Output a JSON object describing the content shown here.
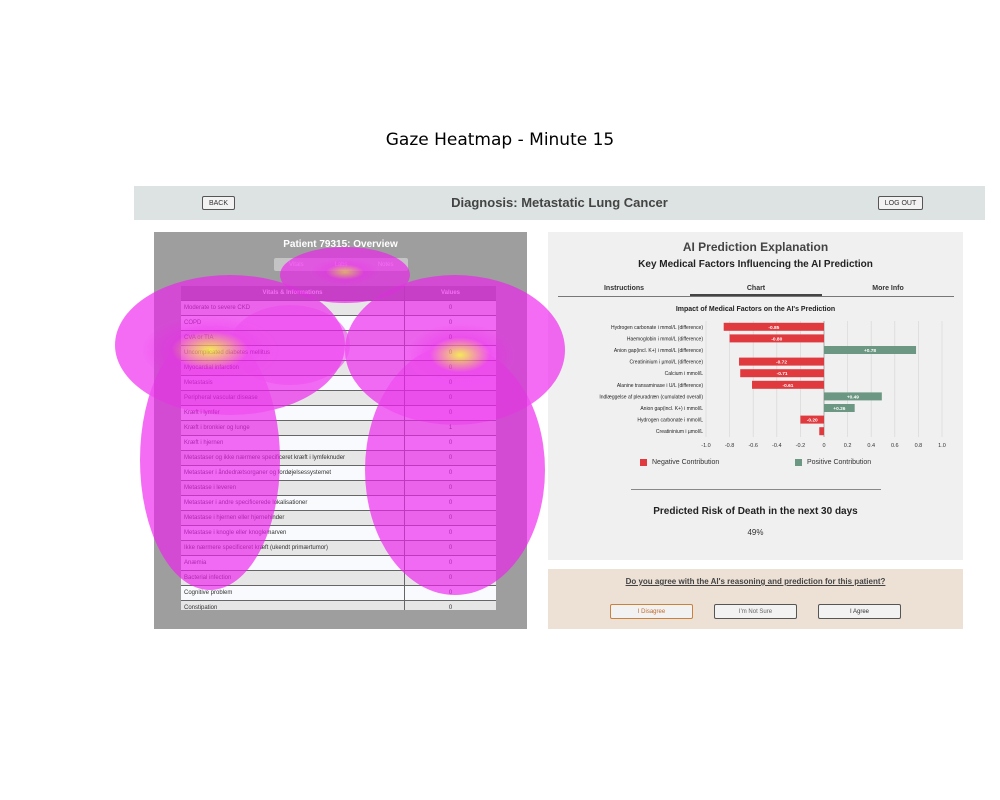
{
  "figure_title": "Gaze Heatmap - Minute 15",
  "topbar": {
    "back_label": "BACK",
    "heading": "Diagnosis: Metastatic Lung Cancer",
    "logout_label": "LOG OUT"
  },
  "patient": {
    "title": "Patient 79315: Overview",
    "tabs": [
      "Vitals",
      "Labs",
      "Notes"
    ],
    "table_headers": [
      "Vitals & Informations",
      "Values"
    ],
    "rows": [
      [
        "Moderate to severe CKD",
        "0"
      ],
      [
        "COPD",
        "0"
      ],
      [
        "CVA or TIA",
        "0"
      ],
      [
        "Uncomplicated diabetes mellitus",
        "0"
      ],
      [
        "Myocardial infarction",
        "0"
      ],
      [
        "Metastasis",
        "0"
      ],
      [
        "Peripheral vascular disease",
        "0"
      ],
      [
        "Kræft i lymfer",
        "0"
      ],
      [
        "Kræft i bronkier og lunge",
        "1"
      ],
      [
        "Kræft i hjernen",
        "0"
      ],
      [
        "Metastaser og ikke nærmere specificeret kræft i lymfeknuder",
        "0"
      ],
      [
        "Metastaser i åndedrætsorganer og fordøjelsessystemet",
        "0"
      ],
      [
        "Metastase i leveren",
        "0"
      ],
      [
        "Metastaser i andre specificerede lokalisationer",
        "0"
      ],
      [
        "Metastase i hjernen eller hjernehinder",
        "0"
      ],
      [
        "Metastase i knogle eller knoglemarven",
        "0"
      ],
      [
        "Ikke nærmere specificeret kræft (ukendt primærtumor)",
        "0"
      ],
      [
        "Anæmia",
        "0"
      ],
      [
        "Bacterial infection",
        "0"
      ],
      [
        "Cognitive problem",
        "0"
      ],
      [
        "Constipation",
        "0"
      ]
    ]
  },
  "explanation": {
    "title": "AI Prediction Explanation",
    "subtitle": "Key Medical Factors Influencing the AI Prediction",
    "tabs": [
      "Instructions",
      "Chart",
      "More Info"
    ],
    "active_tab": "Chart",
    "legend": {
      "negative": "Negative Contribution",
      "positive": "Positive Contribution"
    },
    "risk_title": "Predicted Risk of Death in the next 30 days",
    "risk_value": "49%"
  },
  "chart_data": {
    "type": "bar",
    "orientation": "horizontal",
    "title": "Impact of Medical Factors on the AI's Prediction",
    "categories": [
      "Hydrogen carbonate i mmol/L (difference)",
      "Haemoglobin i mmol/L (difference)",
      "Anion gap(incl. K+) i mmol/L (difference)",
      "Creatininium i µmol/L (difference)",
      "Calcium i mmol/L",
      "Alanine transaminase i U/L (difference)",
      "Indlæggelse af pleuradræn (cumulated overall)",
      "Anion gap(incl. K+) i mmol/L",
      "Hydrogen carbonate i mmol/L",
      "Creatininium i µmol/L"
    ],
    "values": [
      -0.85,
      -0.8,
      0.78,
      -0.72,
      -0.71,
      -0.61,
      0.49,
      0.26,
      -0.2,
      -0.04
    ],
    "labels": [
      "-0.85",
      "-0.80",
      "+0.78",
      "-0.72",
      "-0.71",
      "-0.61",
      "+0.49",
      "+0.26",
      "-0.20",
      ""
    ],
    "xlim": [
      -1.0,
      1.0
    ],
    "xticks": [
      "-1.0",
      "-0.8",
      "-0.6",
      "-0.4",
      "-0.2",
      "0",
      "0.2",
      "0.4",
      "0.6",
      "0.8",
      "1.0"
    ],
    "grid": true,
    "legend_position": "bottom",
    "colors": {
      "negative": "#e0393e",
      "positive": "#6b9783"
    }
  },
  "agreement": {
    "question": "Do you agree with the AI's reasoning and prediction for this patient?",
    "disagree": "I Disagree",
    "unsure": "I'm Not Sure",
    "agree": "I Agree"
  },
  "heatmap": {
    "colors": {
      "low": "#ee22ee",
      "high": "#f5f020"
    }
  }
}
